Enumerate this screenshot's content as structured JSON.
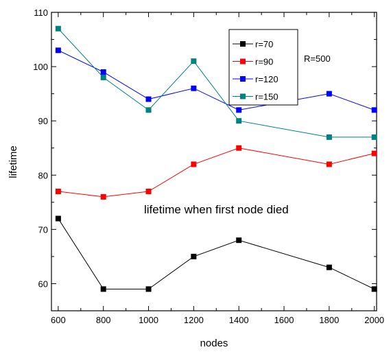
{
  "chart_data": {
    "type": "line",
    "title": "",
    "xlabel": "nodes",
    "ylabel": "lifetime",
    "xlim": [
      570,
      2010
    ],
    "ylim": [
      55,
      110
    ],
    "xticks": [
      600,
      800,
      1000,
      1200,
      1400,
      1600,
      1800,
      2000
    ],
    "yticks": [
      60,
      70,
      80,
      90,
      100,
      110
    ],
    "grid": false,
    "legend_position": "top-right",
    "annotations": [
      "R=500",
      "lifetime  when first node died"
    ],
    "series": [
      {
        "name": "r=70",
        "color": "#000000",
        "x": [
          600,
          800,
          1000,
          1200,
          1400,
          1800,
          2000
        ],
        "y": [
          72,
          59,
          59,
          65,
          68,
          63,
          59
        ]
      },
      {
        "name": "r=90",
        "color": "#ff0000",
        "x": [
          600,
          800,
          1000,
          1200,
          1400,
          1800,
          2000
        ],
        "y": [
          77,
          76,
          77,
          82,
          85,
          82,
          84
        ]
      },
      {
        "name": "r=120",
        "color": "#0000ff",
        "x": [
          600,
          800,
          1000,
          1200,
          1400,
          1800,
          2000
        ],
        "y": [
          103,
          99,
          94,
          96,
          92,
          95,
          92
        ]
      },
      {
        "name": "r=150",
        "color": "#008080",
        "x": [
          600,
          800,
          1000,
          1200,
          1400,
          1800,
          2000
        ],
        "y": [
          107,
          98,
          92,
          101,
          90,
          87,
          87
        ]
      }
    ]
  }
}
